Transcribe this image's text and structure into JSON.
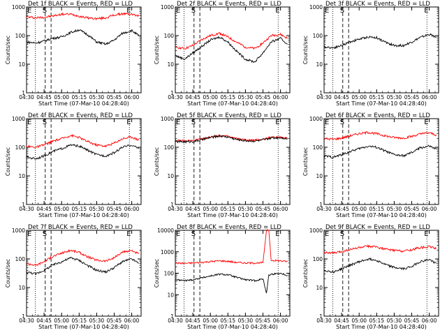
{
  "chart_data": [
    {
      "type": "line",
      "title": "Det 1f BLACK = Events, RED = LLD",
      "xlabel": "Start Time (07-Mar-10 04:28:40)",
      "ylabel": "Counts/sec",
      "yscale": "log",
      "ylim": [
        1,
        1000
      ],
      "y_ticks": [
        "1",
        "10",
        "100",
        "1000"
      ],
      "x_ticks": [
        "04:30",
        "04:45",
        "05:00",
        "05:15",
        "05:30",
        "05:45",
        "06:00"
      ],
      "grid": false,
      "markers": [
        {
          "label": "E",
          "kind": "dotted"
        },
        {
          "label": "S",
          "kind": "dashed"
        },
        {
          "label": "",
          "kind": "dashed"
        },
        {
          "label": "E",
          "kind": "dotted"
        }
      ],
      "series": [
        {
          "color": "#ff0000",
          "x": [
            "04:30",
            "04:38",
            "04:45",
            "04:52",
            "05:00",
            "05:08",
            "05:15",
            "05:22",
            "05:30",
            "05:38",
            "05:45",
            "05:52",
            "06:00",
            "06:06"
          ],
          "values": [
            450,
            420,
            440,
            480,
            560,
            560,
            480,
            420,
            390,
            420,
            520,
            580,
            560,
            480
          ]
        },
        {
          "color": "#000000",
          "x": [
            "04:30",
            "04:38",
            "04:45",
            "04:52",
            "05:00",
            "05:08",
            "05:15",
            "05:22",
            "05:30",
            "05:38",
            "05:45",
            "05:52",
            "06:00",
            "06:06"
          ],
          "values": [
            60,
            55,
            65,
            80,
            90,
            130,
            160,
            110,
            60,
            50,
            70,
            120,
            150,
            100
          ]
        }
      ]
    },
    {
      "type": "line",
      "title": "Det 2f BLACK = Events, RED = LLD",
      "xlabel": "Start Time (07-Mar-10 04:28:40)",
      "ylabel": "Counts/sec",
      "yscale": "log",
      "ylim": [
        1,
        1000
      ],
      "y_ticks": [
        "1",
        "10",
        "100",
        "1000"
      ],
      "x_ticks": [
        "04:30",
        "04:45",
        "05:00",
        "05:15",
        "05:30",
        "05:45",
        "06:00"
      ],
      "grid": false,
      "markers": [
        {
          "label": "E",
          "kind": "dotted"
        },
        {
          "label": "S",
          "kind": "dashed"
        },
        {
          "label": "",
          "kind": "dashed"
        },
        {
          "label": "E",
          "kind": "dotted"
        }
      ],
      "series": [
        {
          "color": "#ff0000",
          "x": [
            "04:30",
            "04:38",
            "04:45",
            "04:52",
            "05:00",
            "05:08",
            "05:15",
            "05:22",
            "05:30",
            "05:38",
            "05:45",
            "05:52",
            "06:00",
            "06:06"
          ],
          "values": [
            40,
            35,
            45,
            70,
            100,
            120,
            90,
            60,
            40,
            35,
            55,
            100,
            110,
            80
          ]
        },
        {
          "color": "#000000",
          "x": [
            "04:30",
            "04:38",
            "04:45",
            "04:52",
            "05:00",
            "05:08",
            "05:15",
            "05:22",
            "05:30",
            "05:38",
            "05:45",
            "05:52",
            "06:00",
            "06:06"
          ],
          "values": [
            20,
            15,
            25,
            40,
            70,
            90,
            60,
            30,
            15,
            12,
            25,
            60,
            80,
            50
          ]
        }
      ]
    },
    {
      "type": "line",
      "title": "Det 3f BLACK = Events, RED = LLD",
      "xlabel": "Start Time (07-Mar-10 04:28:40)",
      "ylabel": "Counts/sec",
      "yscale": "log",
      "ylim": [
        1,
        1000
      ],
      "y_ticks": [
        "1",
        "10",
        "100",
        "1000"
      ],
      "x_ticks": [
        "04:30",
        "04:45",
        "05:00",
        "05:15",
        "05:30",
        "05:45",
        "06:00"
      ],
      "grid": false,
      "markers": [
        {
          "label": "E",
          "kind": "dotted"
        },
        {
          "label": "S",
          "kind": "dashed"
        },
        {
          "label": "",
          "kind": "dashed"
        },
        {
          "label": "E",
          "kind": "dotted"
        }
      ],
      "series": [
        {
          "color": "#000000",
          "x": [
            "04:30",
            "04:38",
            "04:45",
            "04:52",
            "05:00",
            "05:08",
            "05:15",
            "05:22",
            "05:30",
            "05:38",
            "05:45",
            "05:52",
            "06:00",
            "06:06"
          ],
          "values": [
            40,
            38,
            45,
            60,
            75,
            90,
            85,
            60,
            45,
            45,
            60,
            85,
            110,
            90
          ]
        }
      ]
    },
    {
      "type": "line",
      "title": "Det 4f BLACK = Events, RED = LLD",
      "xlabel": "Start Time (07-Mar-10 04:28:40)",
      "ylabel": "Counts/sec",
      "yscale": "log",
      "ylim": [
        1,
        1000
      ],
      "y_ticks": [
        "1",
        "10",
        "100",
        "1000"
      ],
      "x_ticks": [
        "04:30",
        "04:45",
        "05:00",
        "05:15",
        "05:30",
        "05:45",
        "06:00"
      ],
      "grid": false,
      "markers": [
        {
          "label": "E",
          "kind": "dotted"
        },
        {
          "label": "S",
          "kind": "dashed"
        },
        {
          "label": "",
          "kind": "dashed"
        },
        {
          "label": "E",
          "kind": "dotted"
        }
      ],
      "series": [
        {
          "color": "#ff0000",
          "x": [
            "04:30",
            "04:38",
            "04:45",
            "04:52",
            "05:00",
            "05:08",
            "05:15",
            "05:22",
            "05:30",
            "05:38",
            "05:45",
            "05:52",
            "06:00",
            "06:06"
          ],
          "values": [
            110,
            100,
            120,
            160,
            200,
            260,
            220,
            160,
            120,
            110,
            140,
            200,
            230,
            180
          ]
        },
        {
          "color": "#000000",
          "x": [
            "04:30",
            "04:38",
            "04:45",
            "04:52",
            "05:00",
            "05:08",
            "05:15",
            "05:22",
            "05:30",
            "05:38",
            "05:45",
            "05:52",
            "06:00",
            "06:06"
          ],
          "values": [
            45,
            40,
            50,
            70,
            90,
            120,
            110,
            80,
            55,
            50,
            65,
            100,
            120,
            90
          ]
        }
      ]
    },
    {
      "type": "line",
      "title": "Det 5f BLACK = Events, RED = LLD",
      "xlabel": "Start Time (07-Mar-10 04:28:40)",
      "ylabel": "Counts/sec",
      "yscale": "log",
      "ylim": [
        1,
        1000
      ],
      "y_ticks": [
        "1",
        "10",
        "100",
        "1000"
      ],
      "x_ticks": [
        "04:30",
        "04:45",
        "05:00",
        "05:15",
        "05:30",
        "05:45",
        "06:00"
      ],
      "grid": false,
      "markers": [
        {
          "label": "E",
          "kind": "dotted"
        },
        {
          "label": "S",
          "kind": "dashed"
        },
        {
          "label": "",
          "kind": "dashed"
        },
        {
          "label": "E",
          "kind": "dotted"
        }
      ],
      "series": [
        {
          "color": "#ff0000",
          "x": [
            "04:30",
            "04:38",
            "04:45",
            "04:52",
            "05:00",
            "05:08",
            "05:15",
            "05:22",
            "05:30",
            "05:38",
            "05:45",
            "05:52",
            "06:00",
            "06:06"
          ],
          "values": [
            170,
            165,
            170,
            190,
            230,
            260,
            240,
            200,
            180,
            175,
            190,
            220,
            230,
            210
          ]
        },
        {
          "color": "#000000",
          "x": [
            "04:30",
            "04:38",
            "04:45",
            "04:52",
            "05:00",
            "05:08",
            "05:15",
            "05:22",
            "05:30",
            "05:38",
            "05:45",
            "05:52",
            "06:00",
            "06:06"
          ],
          "values": [
            160,
            155,
            160,
            180,
            220,
            250,
            230,
            190,
            170,
            165,
            180,
            210,
            220,
            200
          ]
        }
      ]
    },
    {
      "type": "line",
      "title": "Det 6f BLACK = Events, RED = LLD",
      "xlabel": "Start Time (07-Mar-10 04:28:40)",
      "ylabel": "Counts/sec",
      "yscale": "log",
      "ylim": [
        1,
        1000
      ],
      "y_ticks": [
        "1",
        "10",
        "100",
        "1000"
      ],
      "x_ticks": [
        "04:30",
        "04:45",
        "05:00",
        "05:15",
        "05:30",
        "05:45",
        "06:00"
      ],
      "grid": false,
      "markers": [
        {
          "label": "E",
          "kind": "dotted"
        },
        {
          "label": "S",
          "kind": "dashed"
        },
        {
          "label": "",
          "kind": "dashed"
        },
        {
          "label": "E",
          "kind": "dotted"
        }
      ],
      "series": [
        {
          "color": "#ff0000",
          "x": [
            "04:30",
            "04:38",
            "04:45",
            "04:52",
            "05:00",
            "05:08",
            "05:15",
            "05:22",
            "05:30",
            "05:38",
            "05:45",
            "05:52",
            "06:00",
            "06:06"
          ],
          "values": [
            200,
            190,
            210,
            250,
            300,
            330,
            300,
            250,
            220,
            210,
            240,
            290,
            320,
            270
          ]
        },
        {
          "color": "#000000",
          "x": [
            "04:30",
            "04:38",
            "04:45",
            "04:52",
            "05:00",
            "05:08",
            "05:15",
            "05:22",
            "05:30",
            "05:38",
            "05:45",
            "05:52",
            "06:00",
            "06:06"
          ],
          "values": [
            50,
            45,
            55,
            70,
            90,
            110,
            100,
            75,
            55,
            50,
            65,
            95,
            110,
            85
          ]
        }
      ]
    },
    {
      "type": "line",
      "title": "Det 7f BLACK = Events, RED = LLD",
      "xlabel": "Start Time (07-Mar-10 04:28:40)",
      "ylabel": "Counts/sec",
      "yscale": "log",
      "ylim": [
        1,
        1000
      ],
      "y_ticks": [
        "1",
        "10",
        "100",
        "1000"
      ],
      "x_ticks": [
        "04:30",
        "04:45",
        "05:00",
        "05:15",
        "05:30",
        "05:45",
        "06:00"
      ],
      "grid": false,
      "markers": [
        {
          "label": "E",
          "kind": "dotted"
        },
        {
          "label": "S",
          "kind": "dashed"
        },
        {
          "label": "",
          "kind": "dashed"
        },
        {
          "label": "E",
          "kind": "dotted"
        }
      ],
      "series": [
        {
          "color": "#ff0000",
          "x": [
            "04:30",
            "04:38",
            "04:45",
            "04:52",
            "05:00",
            "05:08",
            "05:15",
            "05:22",
            "05:30",
            "05:38",
            "05:45",
            "05:52",
            "06:00",
            "06:06"
          ],
          "values": [
            70,
            60,
            80,
            120,
            160,
            200,
            170,
            120,
            90,
            85,
            110,
            170,
            200,
            150
          ]
        },
        {
          "color": "#000000",
          "x": [
            "04:30",
            "04:38",
            "04:45",
            "04:52",
            "05:00",
            "05:08",
            "05:15",
            "05:22",
            "05:30",
            "05:38",
            "05:45",
            "05:52",
            "06:00",
            "06:06"
          ],
          "values": [
            35,
            30,
            40,
            60,
            80,
            110,
            90,
            60,
            40,
            35,
            50,
            80,
            100,
            70
          ]
        }
      ]
    },
    {
      "type": "line",
      "title": "Det 8f BLACK = Events, RED = LLD",
      "xlabel": "Start Time (07-Mar-10 04:28:40)",
      "ylabel": "Counts/sec",
      "yscale": "log",
      "ylim": [
        1,
        10000
      ],
      "y_ticks": [
        "1",
        "10",
        "100",
        "1000",
        "10000"
      ],
      "x_ticks": [
        "04:30",
        "04:45",
        "05:00",
        "05:15",
        "05:30",
        "05:45",
        "06:00"
      ],
      "grid": false,
      "markers": [
        {
          "label": "E",
          "kind": "dotted"
        },
        {
          "label": "S",
          "kind": "dashed"
        },
        {
          "label": "",
          "kind": "dashed"
        },
        {
          "label": "E",
          "kind": "dotted"
        }
      ],
      "series": [
        {
          "color": "#ff0000",
          "x": [
            "04:30",
            "04:38",
            "04:45",
            "04:52",
            "05:00",
            "05:08",
            "05:15",
            "05:22",
            "05:30",
            "05:38",
            "05:45",
            "05:48",
            "05:50",
            "05:52",
            "06:00",
            "06:06"
          ],
          "values": [
            300,
            290,
            300,
            320,
            350,
            380,
            360,
            320,
            300,
            300,
            310,
            10000,
            10000,
            400,
            380,
            350
          ]
        },
        {
          "color": "#000000",
          "x": [
            "04:30",
            "04:38",
            "04:45",
            "04:52",
            "05:00",
            "05:08",
            "05:15",
            "05:22",
            "05:30",
            "05:38",
            "05:45",
            "05:48",
            "05:50",
            "05:52",
            "06:00",
            "06:06"
          ],
          "values": [
            50,
            45,
            50,
            60,
            75,
            90,
            85,
            65,
            50,
            45,
            55,
            12,
            80,
            90,
            100,
            80
          ]
        }
      ]
    },
    {
      "type": "line",
      "title": "Det 9f BLACK = Events, RED = LLD",
      "xlabel": "Start Time (07-Mar-10 04:28:40)",
      "ylabel": "Counts/sec",
      "yscale": "log",
      "ylim": [
        1,
        1000
      ],
      "y_ticks": [
        "1",
        "10",
        "100",
        "1000"
      ],
      "x_ticks": [
        "04:30",
        "04:45",
        "05:00",
        "05:15",
        "05:30",
        "05:45",
        "06:00"
      ],
      "grid": false,
      "markers": [
        {
          "label": "E",
          "kind": "dotted"
        },
        {
          "label": "S",
          "kind": "dashed"
        },
        {
          "label": "",
          "kind": "dashed"
        },
        {
          "label": "E",
          "kind": "dotted"
        }
      ],
      "series": [
        {
          "color": "#ff0000",
          "x": [
            "04:30",
            "04:38",
            "04:45",
            "04:52",
            "05:00",
            "05:08",
            "05:15",
            "05:22",
            "05:30",
            "05:38",
            "05:45",
            "05:52",
            "06:00",
            "06:06"
          ],
          "values": [
            170,
            160,
            180,
            210,
            250,
            280,
            260,
            220,
            200,
            190,
            210,
            250,
            270,
            230
          ]
        },
        {
          "color": "#000000",
          "x": [
            "04:30",
            "04:38",
            "04:45",
            "04:52",
            "05:00",
            "05:08",
            "05:15",
            "05:22",
            "05:30",
            "05:38",
            "05:45",
            "05:52",
            "06:00",
            "06:06"
          ],
          "values": [
            40,
            35,
            45,
            60,
            80,
            100,
            90,
            65,
            50,
            45,
            55,
            80,
            95,
            70
          ]
        }
      ]
    }
  ]
}
